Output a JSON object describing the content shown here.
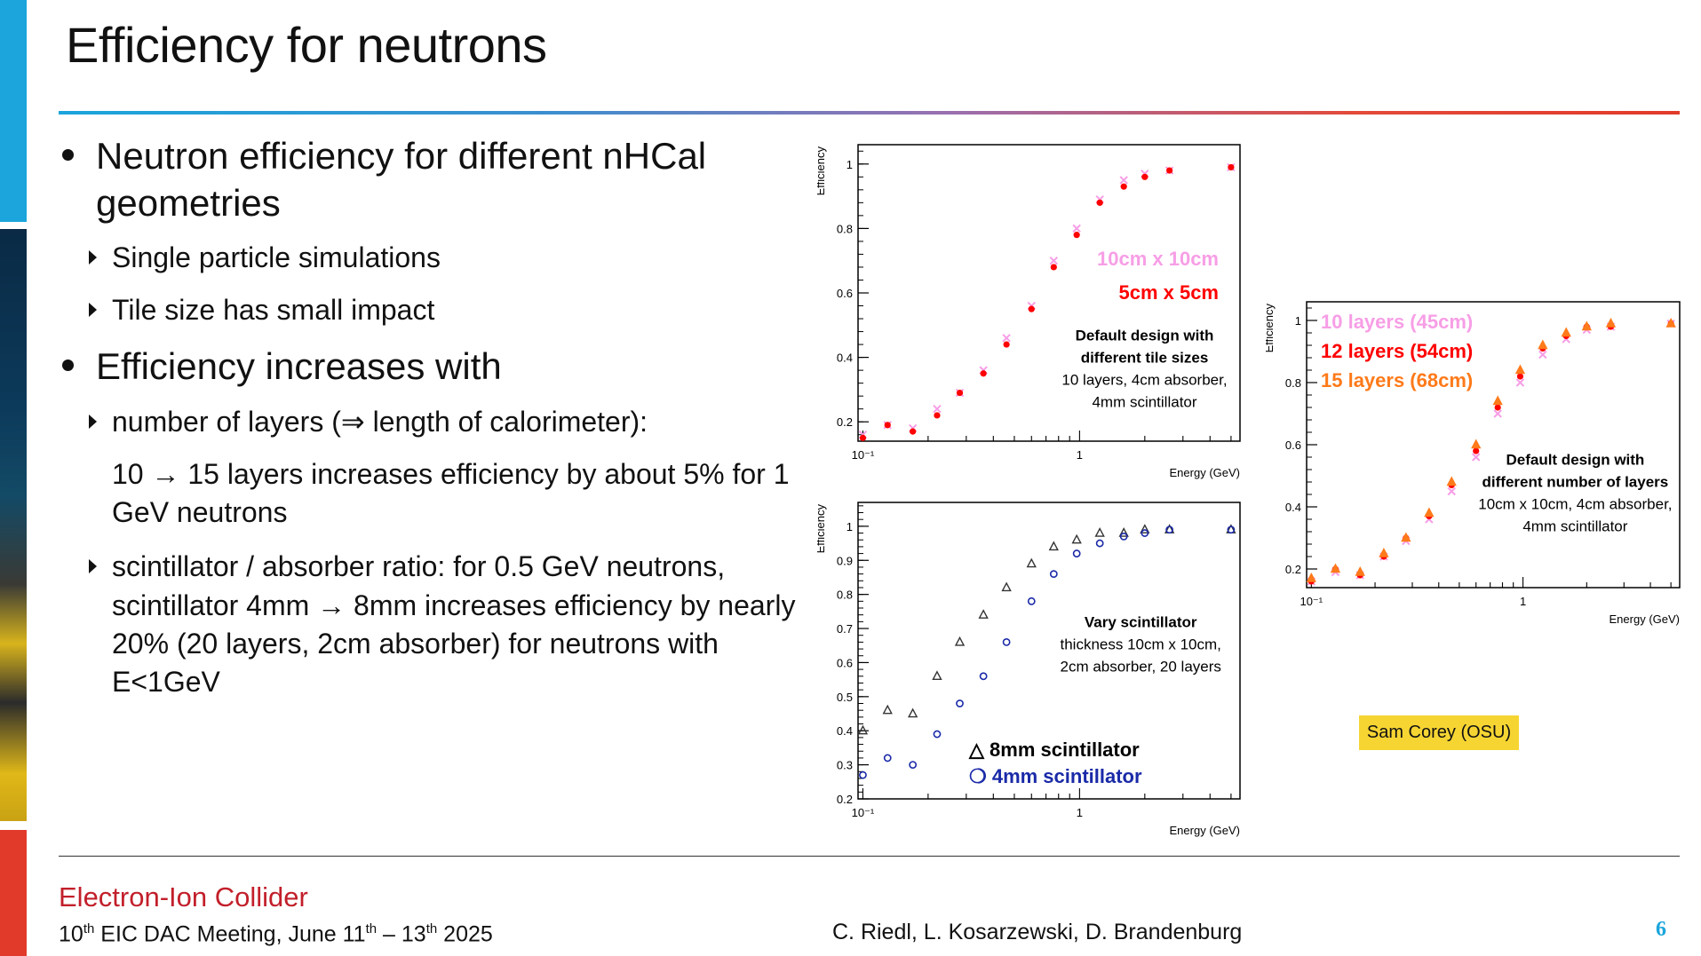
{
  "slide": {
    "title": "Efficiency for neutrons",
    "bullets": {
      "b1": "Neutron efficiency for different nHCal geometries",
      "b1_sub1": "Single particle simulations",
      "b1_sub2": "Tile size has small impact",
      "b2": "Efficiency increases with",
      "b2_sub1": "number of layers (⇒ length of calorimeter):",
      "b2_sub1_text": "10 → 15 layers increases efficiency by about 5% for 1 GeV neutrons",
      "b2_sub2": "scintillator / absorber ratio: for 0.5 GeV neutrons, scintillator 4mm → 8mm increases efficiency by nearly 20% (20 layers, 2cm absorber) for neutrons with E<1GeV"
    },
    "credit": "Sam Corey (OSU)",
    "footer": {
      "org": "Electron-Ion Collider",
      "meeting_pre": "10",
      "meeting_sup1": "th",
      "meeting_mid": " EIC DAC Meeting, June 11",
      "meeting_sup2": "th",
      "meeting_dash": " – 13",
      "meeting_sup3": "th",
      "meeting_end": " 2025",
      "authors": "C. Riedl, L. Kosarzewski, D. Brandenburg",
      "page": "6"
    }
  },
  "chart_data": [
    {
      "type": "scatter",
      "xlabel": "Energy (GeV)",
      "ylabel": "Efficiency",
      "xscale": "log",
      "xlim": [
        0.095,
        5.5
      ],
      "ylim": [
        0.14,
        1.06
      ],
      "yticks": [
        0.2,
        0.4,
        0.6,
        0.8,
        1
      ],
      "xtick_labels": [
        {
          "v": 0.1,
          "t": "10⁻¹"
        },
        {
          "v": 1,
          "t": "1"
        }
      ],
      "annotation": [
        "Default design with",
        "different tile sizes",
        "10 layers, 4cm absorber,",
        "4mm scintillator"
      ],
      "annotation_bold_lines": 2,
      "annotation_pos": "center-right",
      "legend_pos": "upper-right",
      "series": [
        {
          "name": "10cm x 10cm",
          "color": "#f79ee6",
          "marker": "x",
          "x": [
            0.1,
            0.13,
            0.17,
            0.22,
            0.28,
            0.36,
            0.46,
            0.6,
            0.76,
            0.97,
            1.24,
            1.6,
            2.0,
            2.6,
            5.0
          ],
          "y": [
            0.16,
            0.19,
            0.18,
            0.24,
            0.29,
            0.36,
            0.46,
            0.56,
            0.7,
            0.8,
            0.89,
            0.95,
            0.97,
            0.98,
            0.99
          ]
        },
        {
          "name": "5cm x 5cm",
          "color": "#ff0000",
          "marker": "dot",
          "x": [
            0.1,
            0.13,
            0.17,
            0.22,
            0.28,
            0.36,
            0.46,
            0.6,
            0.76,
            0.97,
            1.24,
            1.6,
            2.0,
            2.6,
            5.0
          ],
          "y": [
            0.15,
            0.19,
            0.17,
            0.22,
            0.29,
            0.35,
            0.44,
            0.55,
            0.68,
            0.78,
            0.88,
            0.93,
            0.96,
            0.98,
            0.99
          ]
        }
      ]
    },
    {
      "type": "scatter",
      "xlabel": "Energy (GeV)",
      "ylabel": "Efficiency",
      "xscale": "log",
      "xlim": [
        0.095,
        5.5
      ],
      "ylim": [
        0.2,
        1.07
      ],
      "yticks": [
        0.2,
        0.3,
        0.4,
        0.5,
        0.6,
        0.7,
        0.8,
        0.9,
        1
      ],
      "xtick_labels": [
        {
          "v": 0.1,
          "t": "10⁻¹"
        },
        {
          "v": 1,
          "t": "1"
        }
      ],
      "annotation": [
        "Vary scintillator",
        "thickness 10cm x 10cm,",
        "2cm absorber, 20 layers"
      ],
      "annotation_bold_lines": 1,
      "annotation_pos": "center-right",
      "legend_pos": "lower-right",
      "series": [
        {
          "name": "8mm scintillator",
          "legend_symbol": "△",
          "color": "#333333",
          "marker": "triangle",
          "x": [
            0.1,
            0.13,
            0.17,
            0.22,
            0.28,
            0.36,
            0.46,
            0.6,
            0.76,
            0.97,
            1.24,
            1.6,
            2.0,
            2.6,
            5.0
          ],
          "y": [
            0.4,
            0.46,
            0.45,
            0.56,
            0.66,
            0.74,
            0.82,
            0.89,
            0.94,
            0.96,
            0.98,
            0.98,
            0.99,
            0.99,
            0.99
          ]
        },
        {
          "name": "4mm scintillator",
          "legend_symbol": "❍",
          "color": "#1a2aa8",
          "marker": "circle",
          "x": [
            0.1,
            0.13,
            0.17,
            0.22,
            0.28,
            0.36,
            0.46,
            0.6,
            0.76,
            0.97,
            1.24,
            1.6,
            2.0,
            2.6,
            5.0
          ],
          "y": [
            0.27,
            0.32,
            0.3,
            0.39,
            0.48,
            0.56,
            0.66,
            0.78,
            0.86,
            0.92,
            0.95,
            0.97,
            0.98,
            0.99,
            0.99
          ]
        }
      ]
    },
    {
      "type": "scatter",
      "xlabel": "Energy (GeV)",
      "ylabel": "Efficiency",
      "xscale": "log",
      "xlim": [
        0.095,
        5.5
      ],
      "ylim": [
        0.14,
        1.06
      ],
      "yticks": [
        0.2,
        0.4,
        0.6,
        0.8,
        1
      ],
      "xtick_labels": [
        {
          "v": 0.1,
          "t": "10⁻¹"
        },
        {
          "v": 1,
          "t": "1"
        }
      ],
      "annotation": [
        "Default design with",
        "different number of layers",
        "10cm x 10cm, 4cm absorber,",
        "4mm scintillator"
      ],
      "annotation_bold_lines": 2,
      "annotation_pos": "center-right",
      "legend_pos": "upper-left",
      "series": [
        {
          "name": "10 layers (45cm)",
          "color": "#f79ee6",
          "marker": "x",
          "x": [
            0.1,
            0.13,
            0.17,
            0.22,
            0.28,
            0.36,
            0.46,
            0.6,
            0.76,
            0.97,
            1.24,
            1.6,
            2.0,
            2.6,
            5.0
          ],
          "y": [
            0.16,
            0.19,
            0.18,
            0.24,
            0.29,
            0.36,
            0.45,
            0.56,
            0.7,
            0.8,
            0.89,
            0.94,
            0.97,
            0.98,
            0.99
          ]
        },
        {
          "name": "12 layers (54cm)",
          "color": "#ff0000",
          "marker": "dot",
          "x": [
            0.1,
            0.13,
            0.17,
            0.22,
            0.28,
            0.36,
            0.46,
            0.6,
            0.76,
            0.97,
            1.24,
            1.6,
            2.0,
            2.6,
            5.0
          ],
          "y": [
            0.16,
            0.2,
            0.18,
            0.24,
            0.3,
            0.37,
            0.47,
            0.58,
            0.72,
            0.82,
            0.91,
            0.95,
            0.98,
            0.98,
            0.99
          ]
        },
        {
          "name": "15 layers (68cm)",
          "color": "#ff7a1a",
          "marker": "triangle",
          "x": [
            0.1,
            0.13,
            0.17,
            0.22,
            0.28,
            0.36,
            0.46,
            0.6,
            0.76,
            0.97,
            1.24,
            1.6,
            2.0,
            2.6,
            5.0
          ],
          "y": [
            0.17,
            0.2,
            0.19,
            0.25,
            0.3,
            0.38,
            0.48,
            0.6,
            0.74,
            0.84,
            0.92,
            0.96,
            0.98,
            0.99,
            0.99
          ]
        }
      ]
    }
  ]
}
